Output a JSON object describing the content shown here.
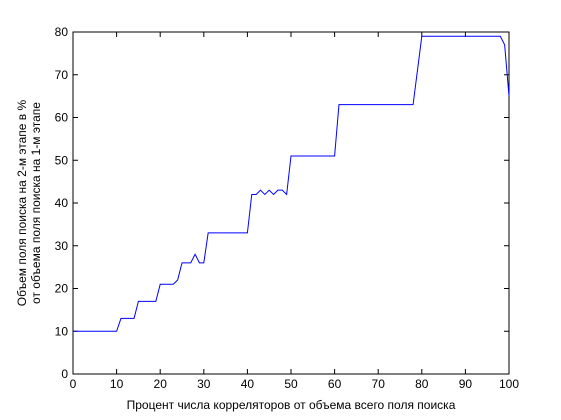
{
  "chart_data": {
    "type": "line",
    "xlabel": "Процент числа корреляторов от объема всего поля поиска",
    "ylabel": [
      "Объем поля поиска на 2-м этапе в %",
      "от объема поля поиска на 1-м этапе"
    ],
    "x": [
      0,
      10,
      11,
      14,
      15,
      19,
      20,
      23,
      24,
      25,
      27,
      28,
      29,
      30,
      31,
      40,
      41,
      42,
      43,
      44,
      45,
      46,
      47,
      48,
      49,
      50,
      60,
      61,
      78,
      80,
      98,
      99,
      100
    ],
    "series": [
      {
        "color": "#0000ff",
        "values": [
          10,
          10,
          13,
          13,
          17,
          17,
          21,
          21,
          22,
          26,
          26,
          28,
          26,
          26,
          33,
          33,
          42,
          42,
          43,
          42,
          43,
          42,
          43,
          43,
          42,
          51,
          51,
          63,
          63,
          79,
          79,
          77,
          65
        ]
      }
    ],
    "xlim": [
      0,
      100
    ],
    "xticks": [
      0,
      10,
      20,
      30,
      40,
      50,
      60,
      70,
      80,
      90,
      100
    ],
    "ylim": [
      0,
      80
    ],
    "yticks": [
      0,
      10,
      20,
      30,
      40,
      50,
      60,
      70,
      80
    ],
    "grid": false
  }
}
